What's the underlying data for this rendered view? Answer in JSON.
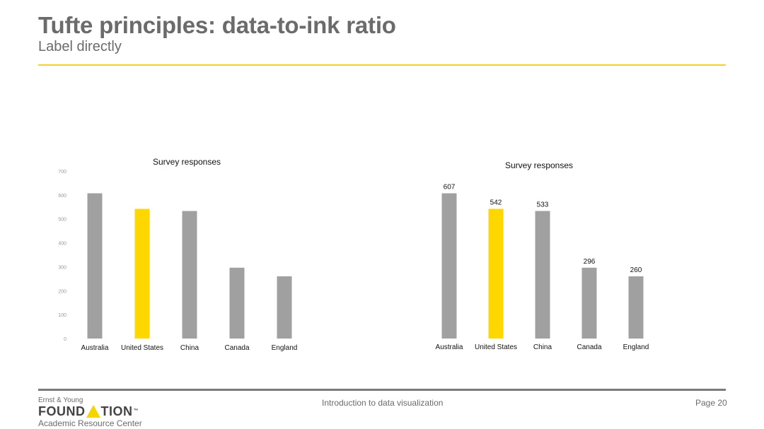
{
  "slide": {
    "title": "Tufte principles: data-to-ink ratio",
    "subtitle": "Label directly"
  },
  "footer": {
    "center_text": "Introduction to data visualization",
    "page_label": "Page 20",
    "logo": {
      "line1": "Ernst & Young",
      "word_left": "FOUND",
      "word_right": "TION",
      "trademark": "™",
      "line3": "Academic Resource Center"
    }
  },
  "colors": {
    "bar_default": "#a0a0a0",
    "bar_highlight": "#ffd700",
    "title_text": "#6b6b6b",
    "accent_rule": "#f0d130"
  },
  "chart_data": [
    {
      "type": "bar",
      "title": "Survey responses",
      "categories": [
        "Australia",
        "United States",
        "China",
        "Canada",
        "England"
      ],
      "values": [
        607,
        542,
        533,
        296,
        260
      ],
      "highlight_category": "United States",
      "ylim": [
        0,
        700
      ],
      "yticks": [
        0,
        100,
        200,
        300,
        400,
        500,
        600,
        700
      ],
      "show_y_axis_labels": true,
      "show_data_labels": false,
      "grid": false
    },
    {
      "type": "bar",
      "title": "Survey responses",
      "categories": [
        "Australia",
        "United States",
        "China",
        "Canada",
        "England"
      ],
      "values": [
        607,
        542,
        533,
        296,
        260
      ],
      "highlight_category": "United States",
      "ylim": [
        0,
        700
      ],
      "show_y_axis_labels": false,
      "show_data_labels": true,
      "grid": false
    }
  ]
}
